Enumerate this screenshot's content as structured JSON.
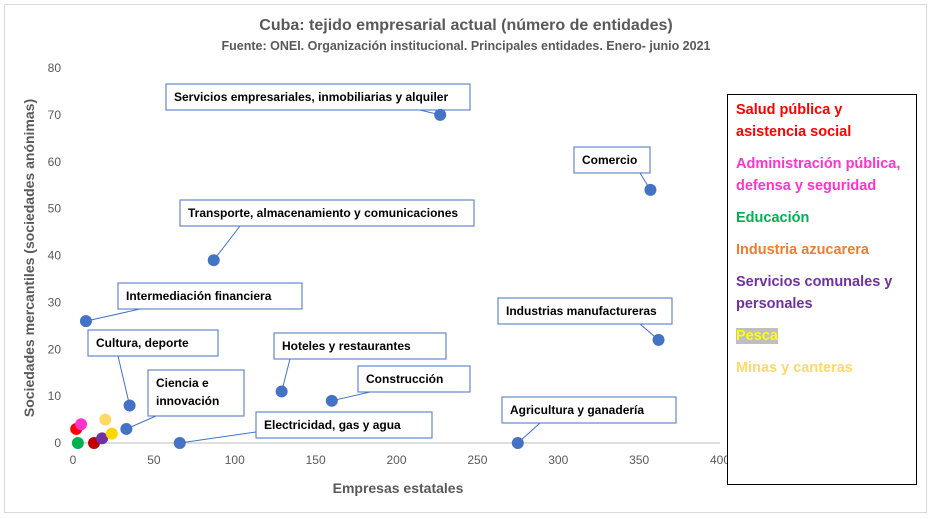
{
  "chart_data": {
    "type": "scatter",
    "title": "Cuba: tejido empresarial actual (número de entidades)",
    "subtitle": "Fuente: ONEI. Organización institucional. Principales entidades. Enero- junio 2021",
    "xlabel": "Empresas estatales",
    "ylabel": "Sociedades mercantiles (sociedades anónimas)",
    "xlim": [
      0,
      400
    ],
    "ylim": [
      0,
      80
    ],
    "xticks": [
      0,
      50,
      100,
      150,
      200,
      250,
      300,
      350,
      400
    ],
    "yticks": [
      0,
      10,
      20,
      30,
      40,
      50,
      60,
      70,
      80
    ],
    "grid": false,
    "legend_position": "right",
    "points": [
      {
        "label": "Servicios empresariales, inmobiliarias y alquiler",
        "x": 227,
        "y": 70,
        "color": "#4472c4"
      },
      {
        "label": "Comercio",
        "x": 357,
        "y": 54,
        "color": "#4472c4"
      },
      {
        "label": "Transporte, almacenamiento y comunicaciones",
        "x": 87,
        "y": 39,
        "color": "#4472c4"
      },
      {
        "label": "Intermediación financiera",
        "x": 8,
        "y": 26,
        "color": "#4472c4"
      },
      {
        "label": "Industrias manufactureras",
        "x": 362,
        "y": 22,
        "color": "#4472c4"
      },
      {
        "label": "Hoteles y restaurantes",
        "x": 129,
        "y": 11,
        "color": "#4472c4"
      },
      {
        "label": "Construcción",
        "x": 160,
        "y": 9,
        "color": "#4472c4"
      },
      {
        "label": "Cultura, deporte",
        "x": 35,
        "y": 8,
        "color": "#4472c4"
      },
      {
        "label": "Ciencia e innovación",
        "x": 33,
        "y": 3,
        "color": "#4472c4"
      },
      {
        "label": "Electricidad, gas y agua",
        "x": 66,
        "y": 0,
        "color": "#4472c4"
      },
      {
        "label": "Agricultura y ganadería",
        "x": 275,
        "y": 0,
        "color": "#4472c4"
      },
      {
        "label": "Salud pública y asistencia social",
        "x": 2,
        "y": 3,
        "color": "#ff0000"
      },
      {
        "label": "Administración pública, defensa y seguridad",
        "x": 5,
        "y": 4,
        "color": "#ff33cc"
      },
      {
        "label": "Educación",
        "x": 3,
        "y": 0,
        "color": "#00b050"
      },
      {
        "label": "Industria azucarera",
        "x": 13,
        "y": 0,
        "color": "#c00000"
      },
      {
        "label": "Servicios comunales y personales",
        "x": 18,
        "y": 1,
        "color": "#7030a0"
      },
      {
        "label": "Pesca",
        "x": 24,
        "y": 2,
        "color": "#ffd700"
      },
      {
        "label": "Minas y canteras",
        "x": 20,
        "y": 5,
        "color": "#ffd966"
      }
    ],
    "callouts": [
      "Servicios empresariales, inmobiliarias y alquiler",
      "Comercio",
      "Transporte, almacenamiento y comunicaciones",
      "Intermediación financiera",
      "Industrias manufactureras",
      "Hoteles y restaurantes",
      "Construcción",
      "Cultura, deporte",
      "Ciencia e innovación",
      "Electricidad, gas y agua",
      "Agricultura y ganadería"
    ],
    "legend": [
      {
        "label": "Salud pública y asistencia social",
        "color": "#ff0000"
      },
      {
        "label": "Administración pública, defensa y seguridad",
        "color": "#ff33cc"
      },
      {
        "label": "Educación",
        "color": "#00b050"
      },
      {
        "label": "Industria azucarera",
        "color": "#ed7d31"
      },
      {
        "label": "Servicios comunales y personales",
        "color": "#7030a0"
      },
      {
        "label": "Pesca",
        "color": "#ffff00",
        "highlight": true
      },
      {
        "label": "Minas y canteras",
        "color": "#ffd966"
      }
    ]
  }
}
